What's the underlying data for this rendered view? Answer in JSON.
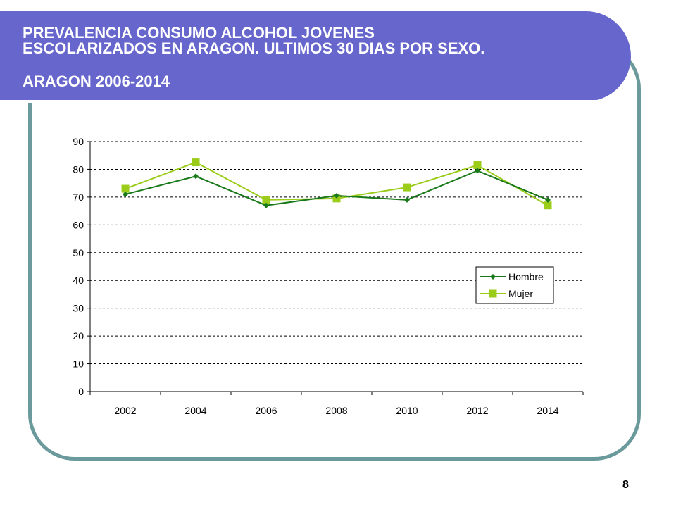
{
  "slide": {
    "title_main": "PREVALENCIA CONSUMO ALCOHOL JOVENES\nESCOLARIZADOS EN ARAGON. ULTIMOS 30 DIAS POR SEXO.",
    "title_sub": "ARAGON 2006-2014",
    "page_number": "8",
    "colors": {
      "header": "#6666cc",
      "frame": "#6b9a9c"
    }
  },
  "chart_data": {
    "type": "line",
    "categories": [
      "2002",
      "2004",
      "2006",
      "2008",
      "2010",
      "2012",
      "2014"
    ],
    "series": [
      {
        "name": "Hombre",
        "values": [
          71,
          77.5,
          67,
          70.5,
          69,
          79.5,
          69
        ],
        "color": "#1a7a1a",
        "marker": "diamond"
      },
      {
        "name": "Mujer",
        "values": [
          73,
          82.5,
          69,
          69.5,
          73.5,
          81.5,
          67
        ],
        "color": "#9ccc1a",
        "marker": "square"
      }
    ],
    "ylim": [
      0,
      90
    ],
    "yticks": [
      "0",
      "10",
      "20",
      "30",
      "40",
      "50",
      "60",
      "70",
      "80",
      "90"
    ],
    "grid": "horizontal-dashed",
    "legend_position": "right"
  }
}
